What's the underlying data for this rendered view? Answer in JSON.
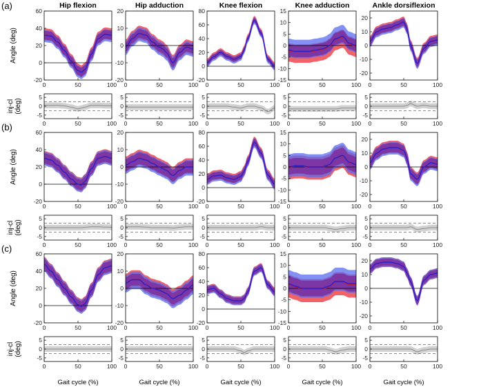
{
  "colors": {
    "injured_band": "#f0484f",
    "contralateral_band": "#5a6cf0",
    "overlap_band": "#7a2a9a",
    "mean_line": "#2a1fd0",
    "diff_band": "#cfcfcf",
    "diff_line": "#8a8a8a",
    "axis": "#000000"
  },
  "chart_data": {
    "type": "line",
    "row_labels": [
      "(a)",
      "(b)",
      "(c)"
    ],
    "column_titles": [
      "Hip flexion",
      "Hip adduction",
      "Knee flexion",
      "Knee adduction",
      "Ankle dorsiflexion"
    ],
    "angle_ylabel": "Angle (deg)",
    "diff_ylabel_top": "inj-cl",
    "diff_ylabel_bottom": "(deg)",
    "xlabel": "Gait cycle (%)",
    "x_ticks": [
      "0",
      "50",
      "100"
    ],
    "diff_ylim": [
      -7,
      7
    ],
    "diff_ticks": [
      "5",
      "0",
      "-5"
    ],
    "diff_dashed_levels": [
      2.5,
      -2.5
    ],
    "columns": [
      {
        "ylim": [
          -20,
          60
        ],
        "ticks": [
          "60",
          "40",
          "20",
          "0",
          "-20"
        ]
      },
      {
        "ylim": [
          -20,
          20
        ],
        "ticks": [
          "20",
          "10",
          "0",
          "-10",
          "-20"
        ]
      },
      {
        "ylim": [
          -20,
          80
        ],
        "ticks": [
          "80",
          "60",
          "40",
          "20",
          "0",
          "-20"
        ]
      },
      {
        "ylim": [
          -15,
          15
        ],
        "ticks": [
          "15",
          "10",
          "5",
          "0",
          "-5",
          "-10",
          "-15"
        ]
      },
      {
        "ylim": [
          -25,
          25
        ],
        "ticks": [
          "20",
          "10",
          "0",
          "-10",
          "-20"
        ]
      }
    ],
    "series_x": [
      0,
      10,
      20,
      30,
      40,
      50,
      55,
      60,
      70,
      80,
      90,
      100
    ],
    "panels": [
      [
        {
          "mean": [
            32,
            31,
            24,
            14,
            2,
            -9,
            -11,
            -8,
            10,
            28,
            33,
            32
          ],
          "sd": 6,
          "sd_alt": 7,
          "offset": 1,
          "diff": [
            0.5,
            0.5,
            0.5,
            0.2,
            -0.5,
            -1.5,
            -1,
            -0.5,
            0.5,
            0.5,
            0.3,
            0.3
          ]
        },
        {
          "mean": [
            -1,
            4,
            7,
            6,
            2,
            -1,
            -2,
            -4,
            -10,
            -4,
            -1,
            -2
          ],
          "sd": 3,
          "sd_alt": 4,
          "offset": 0.5,
          "diff": [
            -0.5,
            -0.5,
            -0.5,
            -0.5,
            -0.5,
            -0.5,
            -0.5,
            -0.5,
            -0.5,
            -0.5,
            -0.5,
            -0.5
          ]
        },
        {
          "mean": [
            5,
            14,
            20,
            14,
            10,
            14,
            24,
            40,
            67,
            48,
            10,
            0
          ],
          "sd": 4,
          "sd_alt": 5,
          "offset": 1,
          "diff": [
            0,
            0,
            0,
            0,
            -0.5,
            -1,
            -0.5,
            0,
            0,
            -1,
            -3,
            -1
          ]
        },
        {
          "mean": [
            -2,
            -2.5,
            -2.5,
            -2.5,
            -2,
            -1.5,
            -1,
            0,
            3,
            4,
            1,
            0
          ],
          "sd": 3,
          "sd_alt": 4,
          "offset": -1,
          "diff": [
            -1.5,
            -1.5,
            -1.5,
            -1.5,
            -1.5,
            -1.5,
            -1.5,
            -1.5,
            -1.5,
            -1,
            -1,
            -1
          ]
        },
        {
          "mean": [
            3,
            10,
            12,
            13,
            15,
            17,
            12,
            0,
            -13,
            -2,
            3,
            4
          ],
          "sd": 3,
          "sd_alt": 3.5,
          "offset": 0.5,
          "diff": [
            0,
            0,
            0,
            0,
            0,
            0,
            0.5,
            1.5,
            0,
            0.5,
            0,
            0
          ]
        }
      ],
      [
        {
          "mean": [
            30,
            28,
            22,
            14,
            6,
            0,
            -1,
            3,
            18,
            30,
            32,
            30
          ],
          "sd": 7,
          "sd_alt": 8,
          "offset": 0.5,
          "diff": [
            0,
            0,
            0,
            0,
            0,
            0,
            0,
            0.2,
            0.5,
            0.5,
            0.3,
            0.2
          ]
        },
        {
          "mean": [
            1,
            3,
            5,
            4,
            2,
            0,
            -1,
            -2,
            -5,
            -2,
            0,
            0
          ],
          "sd": 4,
          "sd_alt": 4.5,
          "offset": 0.5,
          "diff": [
            0.5,
            0.5,
            0.5,
            0.3,
            0,
            0,
            0,
            0,
            -0.2,
            0.2,
            0.5,
            0.5
          ]
        },
        {
          "mean": [
            12,
            17,
            18,
            14,
            12,
            16,
            24,
            38,
            66,
            50,
            18,
            5
          ],
          "sd": 6,
          "sd_alt": 7,
          "offset": 1,
          "diff": [
            0,
            0,
            0,
            0,
            0,
            0,
            0,
            0,
            0,
            0.5,
            0,
            0
          ]
        },
        {
          "mean": [
            0,
            0.5,
            0.5,
            0,
            0,
            0,
            0.5,
            1,
            4,
            5,
            2,
            1
          ],
          "sd": 4,
          "sd_alt": 5,
          "offset": -0.5,
          "diff": [
            0,
            0,
            0,
            0,
            0,
            0,
            0,
            -0.5,
            -1,
            -0.5,
            0,
            0
          ]
        },
        {
          "mean": [
            3,
            10,
            13,
            14,
            14,
            12,
            6,
            -5,
            -9,
            0,
            3,
            2
          ],
          "sd": 4,
          "sd_alt": 4.5,
          "offset": 0.5,
          "diff": [
            0,
            0,
            0,
            0,
            0,
            0,
            0,
            0.5,
            -1,
            -0.5,
            0,
            0
          ]
        }
      ],
      [
        {
          "mean": [
            48,
            40,
            30,
            20,
            10,
            1,
            -1,
            2,
            18,
            36,
            44,
            46
          ],
          "sd": 7,
          "sd_alt": 8,
          "offset": 0.5,
          "diff": [
            0,
            0,
            0,
            0,
            0,
            0,
            0,
            0,
            0,
            0,
            0,
            0
          ]
        },
        {
          "mean": [
            3,
            5,
            5,
            2,
            0,
            -1,
            -2,
            -3,
            -6,
            -4,
            -1,
            2
          ],
          "sd": 4,
          "sd_alt": 5,
          "offset": 0.5,
          "diff": [
            0,
            0,
            0,
            0,
            0,
            0,
            0,
            0,
            0,
            0,
            0,
            0
          ]
        },
        {
          "mean": [
            28,
            30,
            22,
            15,
            12,
            12,
            15,
            25,
            55,
            60,
            35,
            25
          ],
          "sd": 5,
          "sd_alt": 6,
          "offset": 0.5,
          "diff": [
            0,
            0,
            0,
            0,
            0,
            -1,
            -2,
            -1,
            0,
            0,
            0,
            0
          ]
        },
        {
          "mean": [
            2,
            1,
            0,
            0,
            0,
            0,
            0.5,
            1,
            3,
            3,
            2,
            2
          ],
          "sd": 4,
          "sd_alt": 5,
          "offset": -1,
          "diff": [
            0,
            0,
            0,
            0,
            0,
            0,
            0,
            -0.5,
            -1.5,
            -0.5,
            0,
            0
          ]
        },
        {
          "mean": [
            14,
            18,
            19,
            19,
            18,
            16,
            11,
            5,
            -9,
            6,
            10,
            11
          ],
          "sd": 3,
          "sd_alt": 3.5,
          "offset": 0,
          "diff": [
            0,
            0,
            0,
            0,
            0,
            0,
            0,
            0,
            -1.5,
            -0.5,
            0,
            0
          ]
        }
      ]
    ]
  }
}
